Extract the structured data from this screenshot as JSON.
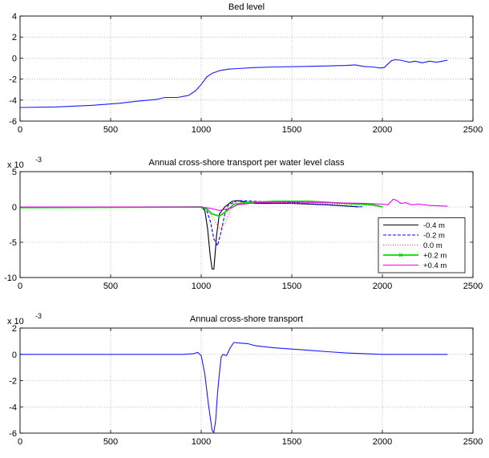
{
  "figure": {
    "background": "#ffffff"
  },
  "chart_data": [
    {
      "type": "line",
      "title": "Bed level",
      "xlabel": "",
      "ylabel": "",
      "xlim": [
        0,
        2500
      ],
      "ylim": [
        -6,
        4
      ],
      "xticks": [
        0,
        500,
        1000,
        1500,
        2000,
        2500
      ],
      "xtick_labels": [
        "0",
        "500",
        "1000",
        "1500",
        "2000",
        "2500"
      ],
      "yticks": [
        -6,
        -4,
        -2,
        0,
        2,
        4
      ],
      "ytick_labels": [
        "-6",
        "-4",
        "-2",
        "0",
        "2",
        "4"
      ],
      "y_exponent_label": "",
      "grid": true,
      "grid_style": "dotted",
      "legend": null,
      "series": [
        {
          "color": "#1a1aff",
          "style": "solid",
          "points": [
            [
              0,
              -4.7
            ],
            [
              200,
              -4.65
            ],
            [
              400,
              -4.5
            ],
            [
              550,
              -4.3
            ],
            [
              650,
              -4.1
            ],
            [
              750,
              -3.95
            ],
            [
              800,
              -3.75
            ],
            [
              870,
              -3.75
            ],
            [
              930,
              -3.55
            ],
            [
              970,
              -3.1
            ],
            [
              1000,
              -2.5
            ],
            [
              1030,
              -1.8
            ],
            [
              1060,
              -1.45
            ],
            [
              1100,
              -1.2
            ],
            [
              1150,
              -1.05
            ],
            [
              1200,
              -1.0
            ],
            [
              1300,
              -0.9
            ],
            [
              1400,
              -0.85
            ],
            [
              1550,
              -0.8
            ],
            [
              1700,
              -0.75
            ],
            [
              1800,
              -0.7
            ],
            [
              1850,
              -0.65
            ],
            [
              1900,
              -0.8
            ],
            [
              1950,
              -0.85
            ],
            [
              1990,
              -0.95
            ],
            [
              2010,
              -0.9
            ],
            [
              2050,
              -0.25
            ],
            [
              2070,
              -0.15
            ],
            [
              2100,
              -0.2
            ],
            [
              2150,
              -0.4
            ],
            [
              2180,
              -0.3
            ],
            [
              2220,
              -0.45
            ],
            [
              2260,
              -0.3
            ],
            [
              2300,
              -0.4
            ],
            [
              2330,
              -0.3
            ],
            [
              2360,
              -0.2
            ]
          ]
        }
      ]
    },
    {
      "type": "line",
      "title": "Annual cross-shore transport per water level class",
      "xlabel": "",
      "ylabel": "",
      "xlim": [
        0,
        2500
      ],
      "ylim": [
        -10,
        5
      ],
      "xticks": [
        0,
        500,
        1000,
        1500,
        2000,
        2500
      ],
      "xtick_labels": [
        "0",
        "500",
        "1000",
        "1500",
        "2000",
        "2500"
      ],
      "yticks": [
        -10,
        -5,
        0,
        5
      ],
      "ytick_labels": [
        "-10",
        "-5",
        "0",
        "5"
      ],
      "y_exponent_label": "x 10",
      "y_exponent_power": "-3",
      "grid": true,
      "grid_style": "dotted",
      "legend": {
        "placement": "lower-right",
        "entries": [
          {
            "label": "-0.4 m",
            "color": "#000000",
            "style": "solid",
            "marker": ""
          },
          {
            "label": "-0.2 m",
            "color": "#0000ff",
            "style": "dashed",
            "marker": ""
          },
          {
            "label": "0.0 m",
            "color": "#ff4444",
            "style": "dotted",
            "marker": ""
          },
          {
            "label": "+0.2 m",
            "color": "#00dd00",
            "style": "solid",
            "marker": "x"
          },
          {
            "label": "+0.4 m",
            "color": "#ee00ee",
            "style": "solid",
            "marker": ""
          }
        ]
      },
      "series": [
        {
          "label": "-0.4 m",
          "color": "#000000",
          "style": "solid",
          "points": [
            [
              0,
              0
            ],
            [
              950,
              0
            ],
            [
              1000,
              0
            ],
            [
              1020,
              -0.5
            ],
            [
              1035,
              -3
            ],
            [
              1050,
              -7
            ],
            [
              1060,
              -8.8
            ],
            [
              1070,
              -8.8
            ],
            [
              1085,
              -4
            ],
            [
              1100,
              -1
            ],
            [
              1130,
              0
            ],
            [
              1170,
              0.8
            ],
            [
              1200,
              0.9
            ],
            [
              1240,
              0.7
            ],
            [
              1300,
              0.5
            ],
            [
              1500,
              0.5
            ],
            [
              1700,
              0.3
            ],
            [
              1870,
              0
            ]
          ]
        },
        {
          "label": "-0.2 m",
          "color": "#0000ff",
          "style": "dashed",
          "points": [
            [
              0,
              0
            ],
            [
              1000,
              0
            ],
            [
              1030,
              -0.5
            ],
            [
              1050,
              -2
            ],
            [
              1070,
              -4.5
            ],
            [
              1090,
              -5.5
            ],
            [
              1110,
              -3.5
            ],
            [
              1130,
              -1
            ],
            [
              1150,
              0.3
            ],
            [
              1200,
              0.9
            ],
            [
              1300,
              0.8
            ],
            [
              1500,
              0.6
            ],
            [
              1700,
              0.3
            ],
            [
              1900,
              0
            ]
          ]
        },
        {
          "label": "0.0 m",
          "color": "#ff4444",
          "style": "dotted",
          "points": [
            [
              0,
              0
            ],
            [
              1000,
              0
            ],
            [
              1050,
              -1
            ],
            [
              1100,
              -3
            ],
            [
              1130,
              -2.5
            ],
            [
              1160,
              -0.5
            ],
            [
              1200,
              0.7
            ],
            [
              1300,
              0.6
            ],
            [
              1600,
              0.5
            ],
            [
              1900,
              0.3
            ],
            [
              2000,
              0
            ]
          ]
        },
        {
          "label": "+0.2 m",
          "color": "#00dd00",
          "style": "solid",
          "points": [
            [
              0,
              -0.1
            ],
            [
              1000,
              0
            ],
            [
              1030,
              -0.3
            ],
            [
              1060,
              -1
            ],
            [
              1100,
              -1.3
            ],
            [
              1140,
              -0.6
            ],
            [
              1180,
              0.4
            ],
            [
              1250,
              0.6
            ],
            [
              1400,
              0.8
            ],
            [
              1600,
              0.8
            ],
            [
              1800,
              0.5
            ],
            [
              1950,
              0.3
            ],
            [
              2000,
              0
            ]
          ]
        },
        {
          "label": "+0.4 m",
          "color": "#ee00ee",
          "style": "solid",
          "points": [
            [
              0,
              0
            ],
            [
              1000,
              0
            ],
            [
              1050,
              -0.2
            ],
            [
              1100,
              -0.5
            ],
            [
              1160,
              -0.2
            ],
            [
              1200,
              0.3
            ],
            [
              1300,
              0.6
            ],
            [
              1500,
              0.7
            ],
            [
              1700,
              0.6
            ],
            [
              1900,
              0.5
            ],
            [
              2000,
              0.4
            ],
            [
              2030,
              0.3
            ],
            [
              2060,
              1.1
            ],
            [
              2080,
              0.9
            ],
            [
              2100,
              0.5
            ],
            [
              2130,
              0.6
            ],
            [
              2160,
              0.3
            ],
            [
              2200,
              0.4
            ],
            [
              2260,
              0.2
            ],
            [
              2360,
              0.1
            ]
          ]
        }
      ]
    },
    {
      "type": "line",
      "title": "Annual cross-shore transport",
      "xlabel": "",
      "ylabel": "",
      "xlim": [
        0,
        2500
      ],
      "ylim": [
        -6,
        2
      ],
      "xticks": [
        0,
        500,
        1000,
        1500,
        2000,
        2500
      ],
      "xtick_labels": [
        "0",
        "500",
        "1000",
        "1500",
        "2000",
        "2500"
      ],
      "yticks": [
        -6,
        -4,
        -2,
        0,
        2
      ],
      "ytick_labels": [
        "-6",
        "-4",
        "-2",
        "0",
        "2"
      ],
      "y_exponent_label": "x 10",
      "y_exponent_power": "-3",
      "grid": true,
      "grid_style": "dotted",
      "legend": null,
      "series": [
        {
          "color": "#1a1aff",
          "style": "solid",
          "points": [
            [
              0,
              0
            ],
            [
              900,
              0
            ],
            [
              960,
              0.05
            ],
            [
              980,
              0.15
            ],
            [
              1000,
              -0.1
            ],
            [
              1020,
              -1.5
            ],
            [
              1040,
              -3.8
            ],
            [
              1060,
              -5.8
            ],
            [
              1070,
              -5.95
            ],
            [
              1080,
              -5
            ],
            [
              1090,
              -3
            ],
            [
              1100,
              -1.5
            ],
            [
              1110,
              -0.2
            ],
            [
              1120,
              0
            ],
            [
              1140,
              -0.1
            ],
            [
              1160,
              0.5
            ],
            [
              1180,
              0.9
            ],
            [
              1220,
              0.85
            ],
            [
              1260,
              0.8
            ],
            [
              1300,
              0.65
            ],
            [
              1400,
              0.5
            ],
            [
              1500,
              0.4
            ],
            [
              1600,
              0.3
            ],
            [
              1700,
              0.2
            ],
            [
              1800,
              0.1
            ],
            [
              1900,
              0.05
            ],
            [
              2000,
              0
            ],
            [
              2360,
              0
            ]
          ]
        }
      ]
    }
  ]
}
